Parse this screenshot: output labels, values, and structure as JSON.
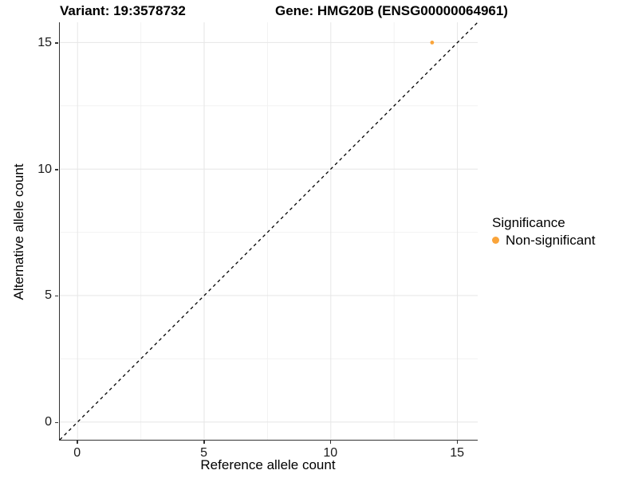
{
  "chart_data": {
    "type": "scatter",
    "title_left": "Variant: 19:3578732",
    "title_right": "Gene: HMG20B (ENSG00000064961)",
    "xlabel": "Reference allele count",
    "ylabel": "Alternative allele count",
    "xlim": [
      -0.7,
      15.8
    ],
    "ylim": [
      -0.7,
      15.8
    ],
    "x_ticks": [
      0,
      5,
      10,
      15
    ],
    "y_ticks": [
      0,
      5,
      10,
      15
    ],
    "x_minor_ticks": [
      2.5,
      7.5,
      12.5
    ],
    "y_minor_ticks": [
      2.5,
      7.5,
      12.5
    ],
    "grid": "major and minor gridlines, white panel background",
    "reference_line": {
      "kind": "identity y=x",
      "style": "dashed",
      "color": "#000000"
    },
    "series": [
      {
        "name": "Non-significant",
        "color": "#FAA43A",
        "points": [
          {
            "x": 14,
            "y": 15
          }
        ]
      }
    ],
    "legend": {
      "title": "Significance",
      "position": "right",
      "items": [
        {
          "label": "Non-significant",
          "color": "#FAA43A"
        }
      ]
    }
  },
  "colors": {
    "point": "#FAA43A",
    "grid_major": "#e6e6e6",
    "grid_minor": "#f2f2f2",
    "axis_line": "#333333",
    "dashed_line": "#000000"
  }
}
